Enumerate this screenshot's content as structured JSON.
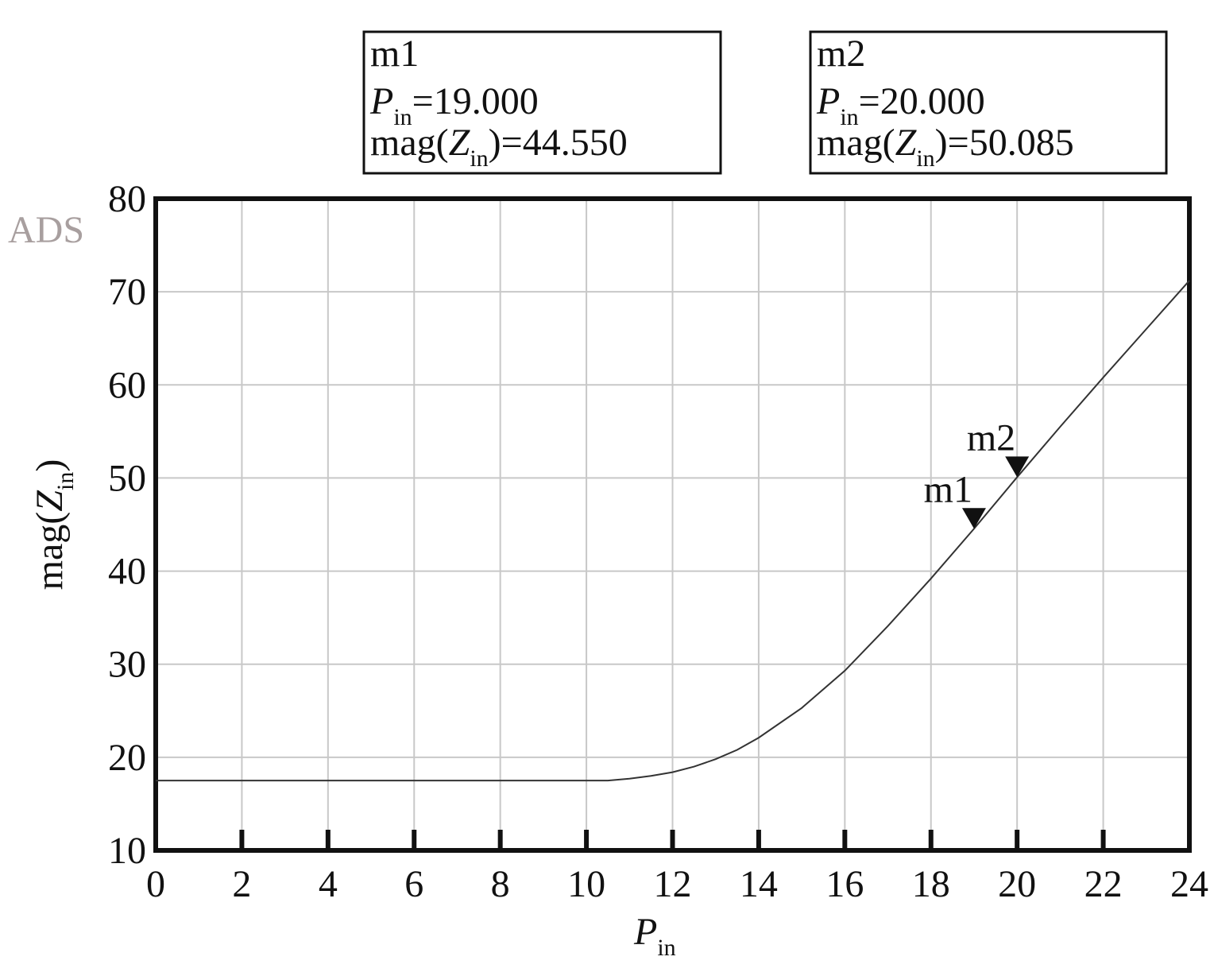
{
  "chart_data": {
    "type": "line",
    "watermark": "ADS",
    "xlabel": {
      "symbol": "P",
      "subscript": "in"
    },
    "ylabel": {
      "prefix": "mag(",
      "symbol": "Z",
      "subscript": "in",
      "suffix": ")"
    },
    "equals": "=",
    "x": [
      0,
      2,
      4,
      6,
      8,
      10,
      10.5,
      11,
      11.5,
      12,
      12.5,
      13,
      13.5,
      14,
      15,
      16,
      17,
      18,
      19,
      20,
      21,
      22,
      23,
      24
    ],
    "series": [
      {
        "color": "#333333",
        "values": [
          17.5,
          17.5,
          17.5,
          17.5,
          17.5,
          17.5,
          17.5,
          17.7,
          18.0,
          18.4,
          19.0,
          19.8,
          20.8,
          22.1,
          25.3,
          29.3,
          34.1,
          39.2,
          44.55,
          50.085,
          55.5,
          60.8,
          66.0,
          71.2
        ]
      }
    ],
    "xlim": [
      0,
      24
    ],
    "xticks": [
      0,
      2,
      4,
      6,
      8,
      10,
      12,
      14,
      16,
      18,
      20,
      22,
      24
    ],
    "ylim": [
      10,
      80
    ],
    "yticks": [
      10,
      20,
      30,
      40,
      50,
      60,
      70,
      80
    ],
    "grid": true,
    "markers": [
      {
        "name": "m1",
        "x": 19,
        "y": 44.55,
        "x_label": "19.000",
        "y_label": "44.550"
      },
      {
        "name": "m2",
        "x": 20,
        "y": 50.085,
        "x_label": "20.000",
        "y_label": "50.085"
      }
    ]
  }
}
